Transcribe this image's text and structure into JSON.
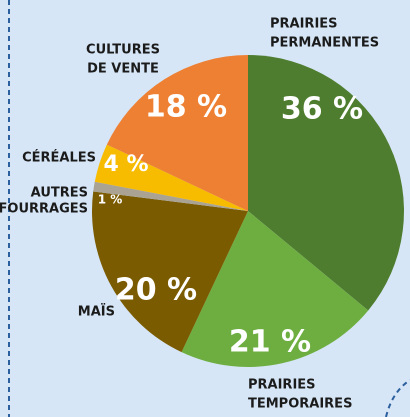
{
  "chart_data": {
    "type": "pie",
    "categories": [
      [
        "PRAIRIES",
        "PERMANENTES"
      ],
      [
        "PRAIRIES",
        "TEMPORAIRES"
      ],
      [
        "MAÏS"
      ],
      [
        "AUTRES",
        "FOURRAGES"
      ],
      [
        "CÉRÉALES"
      ],
      [
        "CULTURES",
        "DE VENTE"
      ]
    ],
    "values": [
      36,
      21,
      20,
      1,
      4,
      18
    ],
    "value_labels": [
      "36 %",
      "21 %",
      "20 %",
      "1 %",
      "4 %",
      "18 %"
    ],
    "colors": [
      "#4f7d2f",
      "#6eae41",
      "#7b5b00",
      "#aaa394",
      "#f7bb00",
      "#ee8034"
    ]
  }
}
